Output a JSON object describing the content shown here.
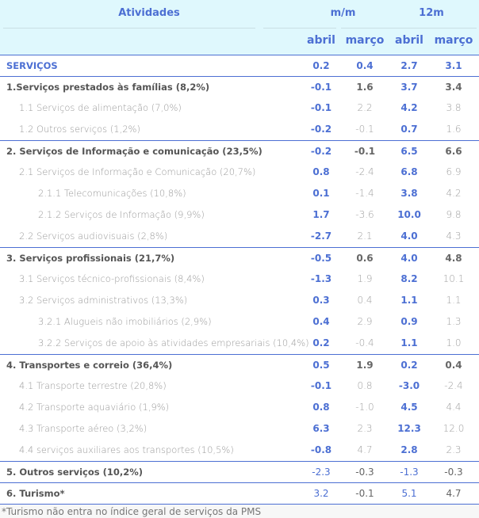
{
  "header": {
    "atividades": "Atividades",
    "mm": "m/m",
    "m12": "12m",
    "sub": [
      "abril",
      "março",
      "abril",
      "março"
    ]
  },
  "rows": [
    {
      "label": "SERVIÇOS",
      "level": "top",
      "values": [
        "0.2",
        "0.4",
        "2.7",
        "3.1"
      ]
    },
    {
      "label": "1.Serviços prestados às famílias (8,2%)",
      "level": "main",
      "values": [
        "-0.1",
        "1.6",
        "3.7",
        "3.4"
      ]
    },
    {
      "label": "1.1 Serviços de alimentação (7,0%)",
      "level": "l2",
      "values": [
        "-0.1",
        "2.2",
        "4.2",
        "3.8"
      ]
    },
    {
      "label": "1.2 Outros serviços (1,2%)",
      "level": "l2",
      "values": [
        "-0.2",
        "-0.1",
        "0.7",
        "1.6"
      ]
    },
    {
      "label": "2. Serviços de Informação e comunicação (23,5%)",
      "level": "main",
      "values": [
        "-0.2",
        "-0.1",
        "6.5",
        "6.6"
      ]
    },
    {
      "label": "2.1 Serviços de Informação e Comunicação (20,7%)",
      "level": "l2",
      "values": [
        "0.8",
        "-2.4",
        "6.8",
        "6.9"
      ]
    },
    {
      "label": "2.1.1 Telecomunicações (10,8%)",
      "level": "l3",
      "values": [
        "0.1",
        "-1.4",
        "3.8",
        "4.2"
      ]
    },
    {
      "label": "2.1.2 Serviços de Informação (9,9%)",
      "level": "l3",
      "values": [
        "1.7",
        "-3.6",
        "10.0",
        "9.8"
      ]
    },
    {
      "label": "2.2 Serviços audiovisuais (2,8%)",
      "level": "l2",
      "values": [
        "-2.7",
        "2.1",
        "4.0",
        "4.3"
      ]
    },
    {
      "label": "3. Serviços profissionais (21,7%)",
      "level": "main",
      "values": [
        "-0.5",
        "0.6",
        "4.0",
        "4.8"
      ]
    },
    {
      "label": "3.1 Serviços técnico-profissionais (8,4%)",
      "level": "l2",
      "values": [
        "-1.3",
        "1.9",
        "8.2",
        "10.1"
      ]
    },
    {
      "label": "3.2 Serviços administrativos (13,3%)",
      "level": "l2",
      "values": [
        "0.3",
        "0.4",
        "1.1",
        "1.1"
      ]
    },
    {
      "label": "3.2.1 Alugueis não imobiliários (2,9%)",
      "level": "l3",
      "values": [
        "0.4",
        "2.9",
        "0.9",
        "1.3"
      ]
    },
    {
      "label": "3.2.2 Serviços de apoio às atividades empresariais (10,4%)",
      "level": "l3",
      "values": [
        "0.2",
        "-0.4",
        "1.1",
        "1.0"
      ]
    },
    {
      "label": "4. Transportes e correio (36,4%)",
      "level": "main",
      "values": [
        "0.5",
        "1.9",
        "0.2",
        "0.4"
      ]
    },
    {
      "label": "4.1 Transporte terrestre (20,8%)",
      "level": "l2",
      "values": [
        "-0.1",
        "0.8",
        "-3.0",
        "-2.4"
      ]
    },
    {
      "label": "4.2 Transporte aquaviário (1,9%)",
      "level": "l2",
      "values": [
        "0.8",
        "-1.0",
        "4.5",
        "4.4"
      ]
    },
    {
      "label": "4.3 Transporte aéreo (3,2%)",
      "level": "l2",
      "values": [
        "6.3",
        "2.3",
        "12.3",
        "12.0"
      ]
    },
    {
      "label": "4.4 serviços auxiliares aos transportes (10,5%)",
      "level": "l2",
      "values": [
        "-0.8",
        "4.7",
        "2.8",
        "2.3"
      ]
    },
    {
      "label": "5. Outros serviços (10,2%)",
      "level": "main2",
      "values": [
        "-2.3",
        "-0.3",
        "-1.3",
        "-0.3"
      ]
    },
    {
      "label": "6. Turismo*",
      "level": "main2",
      "values": [
        "3.2",
        "-0.1",
        "5.1",
        "4.7"
      ]
    }
  ],
  "footnote": "*Turismo não entra no índice geral de serviços da PMS"
}
